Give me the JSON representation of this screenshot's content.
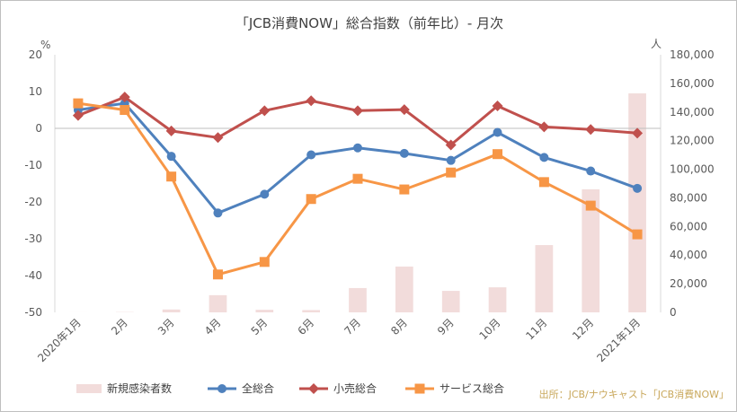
{
  "chart_data": {
    "type": "bar+line",
    "title": "「JCB消費NOW」総合指数（前年比）- 月次",
    "left_unit": "%",
    "right_unit": "人",
    "categories": [
      "2020年1月",
      "2月",
      "3月",
      "4月",
      "5月",
      "6月",
      "7月",
      "8月",
      "9月",
      "10月",
      "11月",
      "12月",
      "2021年1月"
    ],
    "y_left": {
      "min": -50,
      "max": 20,
      "ticks": [
        20,
        10,
        0,
        -10,
        -20,
        -30,
        -40,
        -50
      ],
      "tick_labels": [
        "20",
        "10",
        "0",
        "-10",
        "-20",
        "-30",
        "-40",
        "-50"
      ]
    },
    "y_right": {
      "min": 0,
      "max": 180000,
      "ticks": [
        180000,
        160000,
        140000,
        120000,
        100000,
        80000,
        60000,
        40000,
        20000,
        0
      ],
      "tick_labels": [
        "180,000",
        "160,000",
        "140,000",
        "120,000",
        "100,000",
        "80,000",
        "60,000",
        "40,000",
        "20,000",
        "0"
      ]
    },
    "bars": {
      "name": "新規感染者数",
      "axis": "right",
      "color": "#f2dcdb",
      "values": [
        20,
        200,
        2000,
        12000,
        1800,
        1600,
        17000,
        32000,
        15000,
        17500,
        47000,
        86000,
        153000
      ]
    },
    "series": [
      {
        "name": "全総合",
        "axis": "left",
        "color": "#4f81bd",
        "marker": "circle",
        "values": [
          5.0,
          6.8,
          -7.6,
          -23.0,
          -17.9,
          -7.2,
          -5.3,
          -6.8,
          -8.7,
          -1.1,
          -7.9,
          -11.6,
          -16.3
        ]
      },
      {
        "name": "小売総合",
        "axis": "left",
        "color": "#c0504d",
        "marker": "diamond",
        "values": [
          3.5,
          8.5,
          -0.7,
          -2.5,
          4.8,
          7.5,
          4.8,
          5.1,
          -4.5,
          6.1,
          0.4,
          -0.3,
          -1.3
        ]
      },
      {
        "name": "サービス総合",
        "axis": "left",
        "color": "#f79646",
        "marker": "square",
        "values": [
          6.8,
          5.0,
          -13.1,
          -39.7,
          -36.3,
          -19.2,
          -13.7,
          -16.6,
          -12.0,
          -7.0,
          -14.6,
          -21.0,
          -28.8
        ]
      }
    ],
    "legend": {
      "position": "bottom",
      "items": [
        "新規感染者数",
        "全総合",
        "小売総合",
        "サービス総合"
      ]
    },
    "grid": false,
    "zero_line": true
  },
  "source_note": "出所：JCB/ナウキャスト「JCB消費NOW」"
}
